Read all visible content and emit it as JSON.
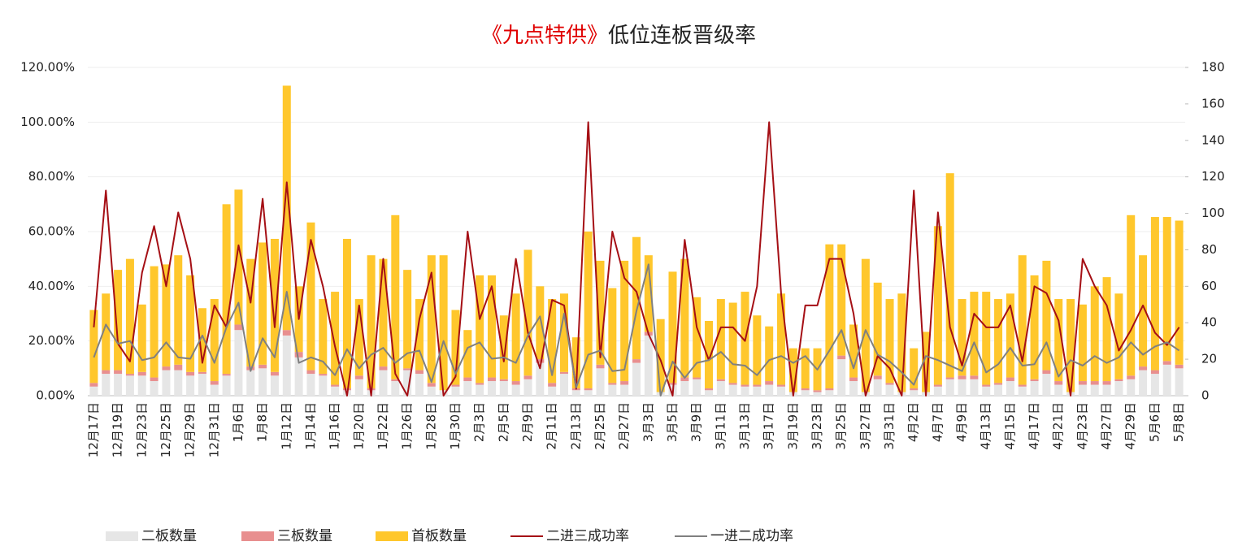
{
  "chart_data": {
    "type": "bar",
    "title_highlight": "《九点特供》",
    "title": "低位连板晋级率",
    "categories": [
      "12月17日",
      null,
      "12月19日",
      null,
      "12月23日",
      null,
      "12月25日",
      null,
      "12月29日",
      null,
      "12月31日",
      null,
      "1月6日",
      null,
      "1月8日",
      null,
      "1月12日",
      null,
      "1月14日",
      null,
      "1月16日",
      null,
      "1月20日",
      null,
      "1月22日",
      null,
      "1月26日",
      null,
      "1月28日",
      null,
      "1月30日",
      null,
      "2月3日",
      null,
      "2月5日",
      null,
      "2月9日",
      null,
      "2月11日",
      null,
      "2月13日",
      null,
      "2月25日",
      null,
      "2月27日",
      null,
      "3月3日",
      null,
      "3月5日",
      null,
      "3月9日",
      null,
      "3月11日",
      null,
      "3月13日",
      null,
      "3月17日",
      null,
      "3月19日",
      null,
      "3月23日",
      null,
      "3月25日",
      null,
      "3月27日",
      null,
      "3月31日",
      null,
      "4月2日",
      null,
      "4月7日",
      null,
      "4月9日",
      null,
      "4月13日",
      null,
      "4月15日",
      null,
      "4月17日",
      null,
      "4月21日",
      null,
      "4月23日",
      null,
      "4月27日",
      null,
      "4月29日",
      null,
      "5月6日",
      null,
      "5月8日"
    ],
    "series": [
      {
        "name": "二板数量",
        "type": "bar",
        "axis": "y2",
        "color": "#e6e6e6",
        "values": [
          5,
          12,
          12,
          11,
          11,
          8,
          14,
          14,
          11,
          12,
          6,
          11,
          36,
          14,
          15,
          11,
          33,
          21,
          12,
          11,
          5,
          3,
          9,
          3,
          14,
          8,
          14,
          12,
          5,
          3,
          5,
          8,
          6,
          8,
          8,
          6,
          9,
          18,
          5,
          12,
          3,
          3,
          15,
          6,
          6,
          18,
          33,
          2,
          6,
          8,
          9,
          3,
          8,
          6,
          5,
          5,
          6,
          5,
          2,
          3,
          2,
          3,
          20,
          8,
          2,
          9,
          6,
          2,
          3,
          2,
          5,
          9,
          9,
          9,
          5,
          6,
          8,
          5,
          8,
          12,
          6,
          2,
          6,
          6,
          6,
          8,
          9,
          14,
          12,
          17,
          15
        ]
      },
      {
        "name": "三板数量",
        "type": "bar",
        "axis": "y2",
        "color": "#e88f8f",
        "values": [
          2,
          2,
          2,
          1,
          2,
          2,
          2,
          3,
          2,
          1,
          2,
          1,
          3,
          2,
          2,
          2,
          3,
          3,
          2,
          1,
          1,
          1,
          2,
          1,
          2,
          1,
          1,
          2,
          2,
          0,
          1,
          2,
          1,
          2,
          1,
          2,
          2,
          2,
          2,
          1,
          1,
          1,
          2,
          1,
          2,
          2,
          2,
          0,
          1,
          2,
          1,
          1,
          1,
          1,
          1,
          1,
          2,
          1,
          0,
          1,
          1,
          1,
          2,
          2,
          0,
          2,
          1,
          0,
          1,
          0,
          1,
          1,
          2,
          2,
          1,
          1,
          2,
          1,
          1,
          2,
          2,
          0,
          2,
          2,
          2,
          1,
          2,
          2,
          2,
          2,
          2
        ]
      },
      {
        "name": "首板数量",
        "type": "bar",
        "axis": "y2",
        "color": "#ffc72c",
        "values": [
          40,
          42,
          55,
          63,
          37,
          61,
          56,
          60,
          53,
          35,
          45,
          93,
          74,
          59,
          67,
          73,
          134,
          36,
          81,
          41,
          51,
          82,
          42,
          73,
          59,
          90,
          54,
          39,
          70,
          74,
          41,
          26,
          59,
          56,
          35,
          48,
          69,
          40,
          46,
          43,
          28,
          86,
          57,
          52,
          66,
          67,
          42,
          40,
          61,
          65,
          44,
          37,
          44,
          44,
          51,
          38,
          30,
          50,
          24,
          22,
          23,
          79,
          61,
          29,
          73,
          51,
          46,
          54,
          22,
          33,
          87,
          112,
          42,
          46,
          51,
          46,
          46,
          71,
          57,
          60,
          45,
          51,
          42,
          52,
          57,
          47,
          88,
          61,
          84,
          79,
          79
        ]
      },
      {
        "name": "二进三成功率",
        "type": "line",
        "axis": "y",
        "color": "#a50f15",
        "values": [
          25,
          75,
          19,
          12.5,
          45,
          62,
          40,
          67,
          50,
          12,
          33,
          25,
          55,
          34,
          72,
          25,
          78,
          28,
          57,
          40,
          18,
          0,
          33,
          0,
          50,
          8,
          0,
          28,
          45,
          0,
          7,
          60,
          28,
          40,
          12.5,
          50,
          23,
          10,
          35,
          33,
          2.5,
          100,
          14,
          60,
          43,
          38,
          22.5,
          13,
          0,
          57,
          25,
          13,
          25,
          25,
          20,
          40,
          100,
          37,
          0,
          33,
          33,
          50,
          50,
          30,
          0,
          14.5,
          10,
          0,
          75,
          0,
          67,
          25,
          11,
          30,
          25,
          25,
          33,
          12.5,
          40,
          37.5,
          27.5,
          0,
          50,
          40,
          33,
          16.5,
          24,
          33,
          23,
          18.5,
          25
        ]
      },
      {
        "name": "一进二成功率",
        "type": "line",
        "axis": "y",
        "color": "#808080",
        "values": [
          14,
          26,
          19,
          20,
          13,
          14,
          19.5,
          14,
          13.5,
          22,
          12,
          25,
          34,
          9,
          21,
          14,
          38,
          12,
          14,
          12.5,
          7.5,
          17,
          10,
          15,
          17.5,
          12,
          15.5,
          16.5,
          5,
          20,
          8,
          17.5,
          19.5,
          13.5,
          14,
          12,
          22,
          29,
          7.5,
          30,
          3,
          15,
          16.5,
          9,
          9.5,
          31,
          48,
          0,
          12.5,
          6.5,
          12,
          13,
          16,
          11.5,
          11,
          7.5,
          13,
          14.5,
          12,
          14.5,
          9.5,
          16.5,
          24,
          10,
          24,
          15,
          12.5,
          8.5,
          4,
          14.5,
          13,
          11,
          9,
          19.5,
          8.5,
          11.5,
          17.5,
          11,
          11.5,
          19.5,
          7,
          13,
          11,
          14.5,
          12,
          14,
          19.5,
          15,
          18,
          19.5,
          16.5
        ]
      }
    ],
    "ylim": [
      0,
      120
    ],
    "yticks": [
      {
        "value": 0,
        "label": "0.00%"
      },
      {
        "value": 20,
        "label": "20.00%"
      },
      {
        "value": 40,
        "label": "40.00%"
      },
      {
        "value": 60,
        "label": "60.00%"
      },
      {
        "value": 80,
        "label": "80.00%"
      },
      {
        "value": 100,
        "label": "100.00%"
      },
      {
        "value": 120,
        "label": "120.00%"
      }
    ],
    "y2lim": [
      0,
      180
    ],
    "y2ticks": [
      0,
      20,
      40,
      60,
      80,
      100,
      120,
      140,
      160,
      180
    ],
    "grid": true,
    "legend": "bottom"
  }
}
